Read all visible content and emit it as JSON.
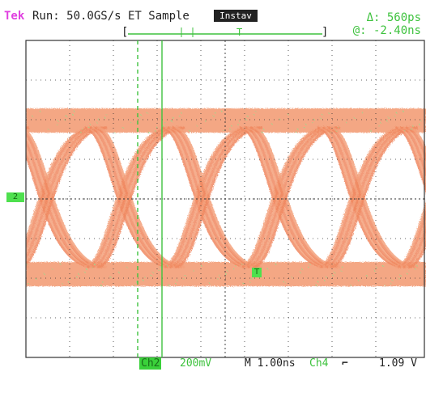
{
  "header": {
    "brand": "Tek",
    "run_status": "Run: 50.0GS/s ET Sample",
    "acq_mode": "Instav",
    "cursor_delta": "Δ: 560ps",
    "cursor_position": "@: -2.40ns",
    "record_left_bracket": "[",
    "record_right_bracket": "]",
    "trigger_marker_label": "T"
  },
  "footer": {
    "channel_label": "Ch2",
    "volts_per_div": "200mV",
    "time_per_div": "M 1.00ns",
    "trigger_channel": "Ch4",
    "trigger_slope": "⌐",
    "trigger_level": "1.09 V"
  },
  "markers": {
    "channel_ground": "2",
    "trigger_level": "T"
  },
  "colors": {
    "trace": "#f3a07a",
    "trace_dense": "#f08860",
    "cursor": "#3ec23e",
    "grid": "#333333",
    "brand": "#e040e0"
  },
  "eye": {
    "unit_intervals_visible": 4,
    "time_per_div_ns": 1.0,
    "volts_per_div_mv": 200
  }
}
